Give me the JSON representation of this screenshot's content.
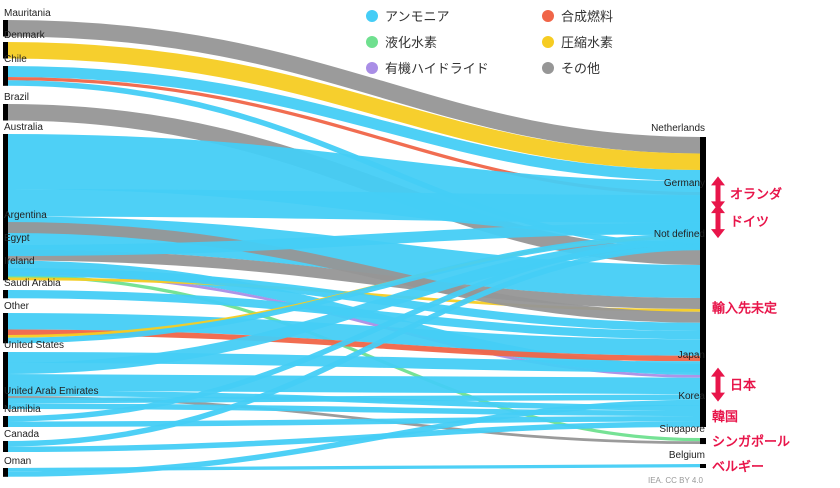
{
  "colors": {
    "ammonia": "#45cdf6",
    "synthetic_fuel": "#f06548",
    "liquid_hydrogen": "#6fe08f",
    "lohc": "#a98ee6",
    "compressed_hydrogen": "#f6cc22",
    "other": "#969696",
    "highlight": "#e8154a"
  },
  "legend": [
    {
      "key": "ammonia",
      "label": "アンモニア"
    },
    {
      "key": "synthetic_fuel",
      "label": "合成燃料"
    },
    {
      "key": "liquid_hydrogen",
      "label": "液化水素"
    },
    {
      "key": "compressed_hydrogen",
      "label": "圧縮水素"
    },
    {
      "key": "lohc",
      "label": "有機ハイドライド"
    },
    {
      "key": "other",
      "label": "その他"
    }
  ],
  "exporters": [
    "Mauritania",
    "Denmark",
    "Chile",
    "Brazil",
    "Australia",
    "Argentina",
    "Egypt",
    "Ireland",
    "Saudi Arabia",
    "Other",
    "United States",
    "United Arab Emirates",
    "Namibia",
    "Canada",
    "Oman"
  ],
  "importers": [
    "Netherlands",
    "Germany",
    "Not defined",
    "Japan",
    "Korea",
    "Singapore",
    "Belgium"
  ],
  "importer_labels_ja": [
    {
      "importer": "Netherlands",
      "label": "オランダ",
      "arrow": true
    },
    {
      "importer": "Germany",
      "label": "ドイツ",
      "arrow": true
    },
    {
      "importer": "Not defined",
      "label": "輸入先未定",
      "arrow": false
    },
    {
      "importer": "Japan",
      "label": "日本",
      "arrow": true
    },
    {
      "importer": "Korea",
      "label": "韓国",
      "arrow": false
    },
    {
      "importer": "Singapore",
      "label": "シンガポール",
      "arrow": false
    },
    {
      "importer": "Belgium",
      "label": "ベルギー",
      "arrow": false
    }
  ],
  "flows": [
    {
      "from": "Mauritania",
      "to": "Netherlands",
      "carrier": "other",
      "value": 3
    },
    {
      "from": "Denmark",
      "to": "Netherlands",
      "carrier": "compressed_hydrogen",
      "value": 3
    },
    {
      "from": "Chile",
      "to": "Netherlands",
      "carrier": "ammonia",
      "value": 2
    },
    {
      "from": "Chile",
      "to": "Germany",
      "carrier": "synthetic_fuel",
      "value": 0.6
    },
    {
      "from": "Chile",
      "to": "Not defined",
      "carrier": "ammonia",
      "value": 1
    },
    {
      "from": "Brazil",
      "to": "Not defined",
      "carrier": "other",
      "value": 3
    },
    {
      "from": "Australia",
      "to": "Netherlands",
      "carrier": "ammonia",
      "value": 10
    },
    {
      "from": "Australia",
      "to": "Germany",
      "carrier": "ammonia",
      "value": 5
    },
    {
      "from": "Australia",
      "to": "Not defined",
      "carrier": "ammonia",
      "value": 6
    },
    {
      "from": "Australia",
      "to": "Not defined",
      "carrier": "other",
      "value": 2
    },
    {
      "from": "Australia",
      "to": "Japan",
      "carrier": "ammonia",
      "value": 2
    },
    {
      "from": "Australia",
      "to": "Japan",
      "carrier": "lohc",
      "value": 0.5
    },
    {
      "from": "Australia",
      "to": "Singapore",
      "carrier": "liquid_hydrogen",
      "value": 0.6
    },
    {
      "from": "Australia",
      "to": "Not defined",
      "carrier": "compressed_hydrogen",
      "value": 0.5
    },
    {
      "from": "Argentina",
      "to": "Not defined",
      "carrier": "other",
      "value": 2
    },
    {
      "from": "Egypt",
      "to": "Germany",
      "carrier": "ammonia",
      "value": 2
    },
    {
      "from": "Ireland",
      "to": "Not defined",
      "carrier": "ammonia",
      "value": 1.5
    },
    {
      "from": "Saudi Arabia",
      "to": "Not defined",
      "carrier": "ammonia",
      "value": 1.5
    },
    {
      "from": "Other",
      "to": "Not defined",
      "carrier": "ammonia",
      "value": 3
    },
    {
      "from": "Other",
      "to": "Not defined",
      "carrier": "synthetic_fuel",
      "value": 1
    },
    {
      "from": "Other",
      "to": "Netherlands",
      "carrier": "compressed_hydrogen",
      "value": 0.5
    },
    {
      "from": "Other",
      "to": "Germany",
      "carrier": "ammonia",
      "value": 1
    },
    {
      "from": "United States",
      "to": "Not defined",
      "carrier": "ammonia",
      "value": 2
    },
    {
      "from": "United States",
      "to": "Netherlands",
      "carrier": "ammonia",
      "value": 2
    },
    {
      "from": "United States",
      "to": "Japan",
      "carrier": "ammonia",
      "value": 3
    },
    {
      "from": "United States",
      "to": "Korea",
      "carrier": "ammonia",
      "value": 1
    },
    {
      "from": "United States",
      "to": "Singapore",
      "carrier": "other",
      "value": 0.5
    },
    {
      "from": "United Arab Emirates",
      "to": "Japan",
      "carrier": "ammonia",
      "value": 1
    },
    {
      "from": "United Arab Emirates",
      "to": "Korea",
      "carrier": "ammonia",
      "value": 1
    },
    {
      "from": "Namibia",
      "to": "Germany",
      "carrier": "ammonia",
      "value": 1
    },
    {
      "from": "Namibia",
      "to": "Korea",
      "carrier": "ammonia",
      "value": 1
    },
    {
      "from": "Canada",
      "to": "Germany",
      "carrier": "ammonia",
      "value": 1
    },
    {
      "from": "Canada",
      "to": "Korea",
      "carrier": "ammonia",
      "value": 1
    },
    {
      "from": "Oman",
      "to": "Belgium",
      "carrier": "ammonia",
      "value": 0.6
    },
    {
      "from": "Oman",
      "to": "Japan",
      "carrier": "ammonia",
      "value": 1
    }
  ],
  "credit": "IEA. CC BY 4.0"
}
